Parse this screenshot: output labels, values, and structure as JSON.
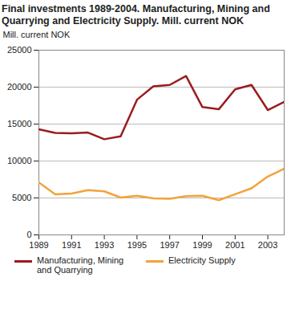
{
  "chart_data": {
    "type": "line",
    "title": "Final investments 1989-2004. Manufacturing, Mining and Quarrying and Electricity Supply. Mill. current NOK",
    "y_label": "Mill. current NOK",
    "x": [
      1989,
      1990,
      1991,
      1992,
      1993,
      1994,
      1995,
      1996,
      1997,
      1998,
      1999,
      2000,
      2001,
      2002,
      2003,
      2004
    ],
    "series": [
      {
        "name": "Manufacturing, Mining and Quarrying",
        "color": "#9b1b1e",
        "values": [
          14300,
          13800,
          13750,
          13850,
          12950,
          13350,
          18300,
          20100,
          20300,
          21500,
          17300,
          17000,
          19700,
          20300,
          16900,
          18000
        ]
      },
      {
        "name": "Electricity Supply",
        "color": "#f2a33a",
        "values": [
          7100,
          5500,
          5600,
          6050,
          5900,
          5050,
          5300,
          4950,
          4900,
          5250,
          5300,
          4700,
          5500,
          6300,
          7900,
          8950
        ]
      }
    ],
    "xlim": [
      1989,
      2004
    ],
    "xticks": [
      1989,
      1991,
      1993,
      1995,
      1997,
      1999,
      2001,
      2003
    ],
    "ylim": [
      0,
      25000
    ],
    "yticks": [
      0,
      5000,
      10000,
      15000,
      20000,
      25000
    ],
    "grid": true,
    "legend": "bottom"
  }
}
